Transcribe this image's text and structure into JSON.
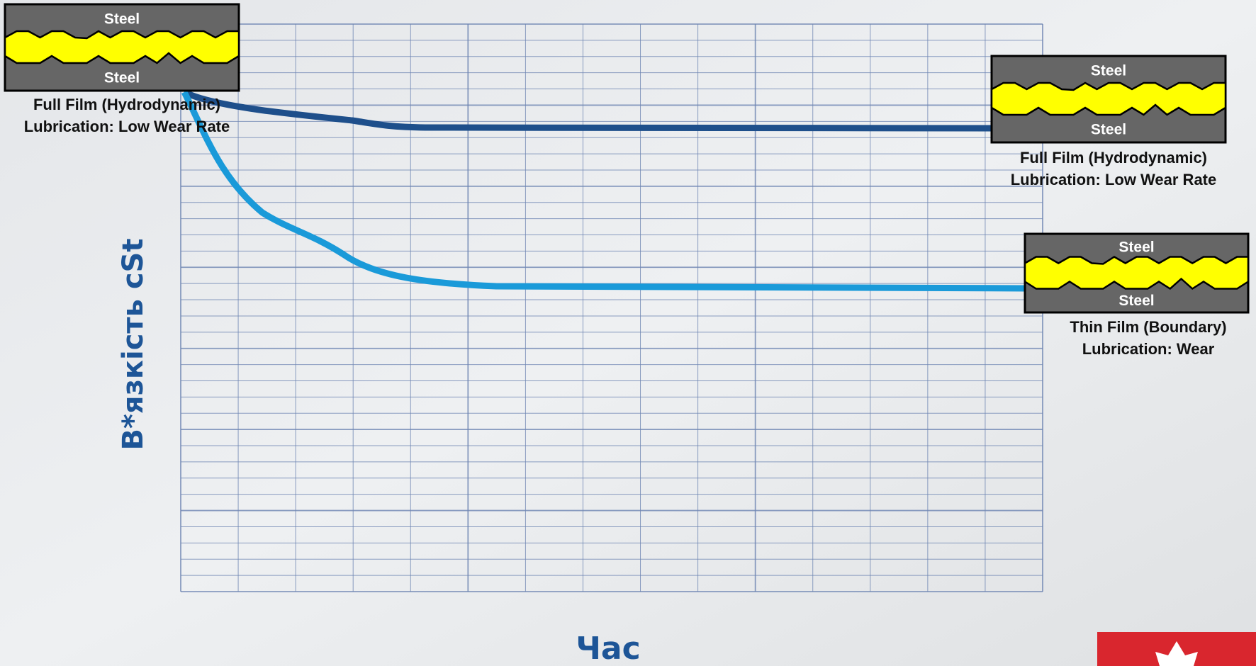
{
  "axes": {
    "y_label": "В*язкість cSt",
    "x_label": "Час"
  },
  "callouts": [
    {
      "top": "Steel",
      "bottom": "Steel",
      "caption": [
        "Full Film (Hydrodynamic)",
        "Lubrication: Low Wear Rate"
      ]
    },
    {
      "top": "Steel",
      "bottom": "Steel",
      "caption": [
        "Full Film (Hydrodynamic)",
        "Lubrication: Low Wear Rate"
      ]
    },
    {
      "top": "Steel",
      "bottom": "Steel",
      "caption": [
        "Thin Film (Boundary)",
        "Lubrication: Wear"
      ]
    }
  ]
}
